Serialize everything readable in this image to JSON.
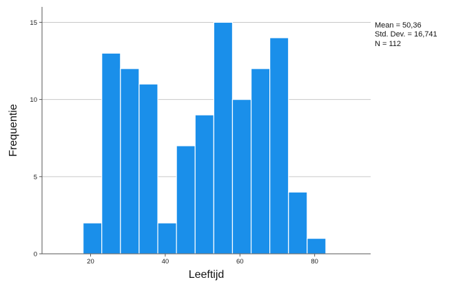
{
  "chart_data": {
    "type": "bar",
    "subtype": "histogram",
    "title": "",
    "xlabel": "Leeftijd",
    "ylabel": "Frequentie",
    "xlim": [
      7,
      95
    ],
    "ylim": [
      0,
      16
    ],
    "xticks": [
      20,
      40,
      60,
      80
    ],
    "yticks": [
      0,
      5,
      10,
      15
    ],
    "bin_width": 5,
    "bins": [
      {
        "start": 18,
        "end": 23,
        "value": 2
      },
      {
        "start": 23,
        "end": 28,
        "value": 13
      },
      {
        "start": 28,
        "end": 33,
        "value": 12
      },
      {
        "start": 33,
        "end": 38,
        "value": 11
      },
      {
        "start": 38,
        "end": 43,
        "value": 2
      },
      {
        "start": 43,
        "end": 48,
        "value": 7
      },
      {
        "start": 48,
        "end": 53,
        "value": 9
      },
      {
        "start": 53,
        "end": 58,
        "value": 15
      },
      {
        "start": 58,
        "end": 63,
        "value": 10
      },
      {
        "start": 63,
        "end": 68,
        "value": 12
      },
      {
        "start": 68,
        "end": 73,
        "value": 14
      },
      {
        "start": 73,
        "end": 78,
        "value": 4
      },
      {
        "start": 78,
        "end": 83,
        "value": 1
      }
    ],
    "grid": "horizontal",
    "legend": "none",
    "colors": {
      "bar": "#1a8fea",
      "bar_edge": "#ffffff",
      "grid": "#c6c6c6",
      "axis": "#555555"
    },
    "stats": {
      "mean": "Mean = 50,36",
      "std_dev": "Std. Dev. = 16,741",
      "n": "N = 112"
    }
  }
}
